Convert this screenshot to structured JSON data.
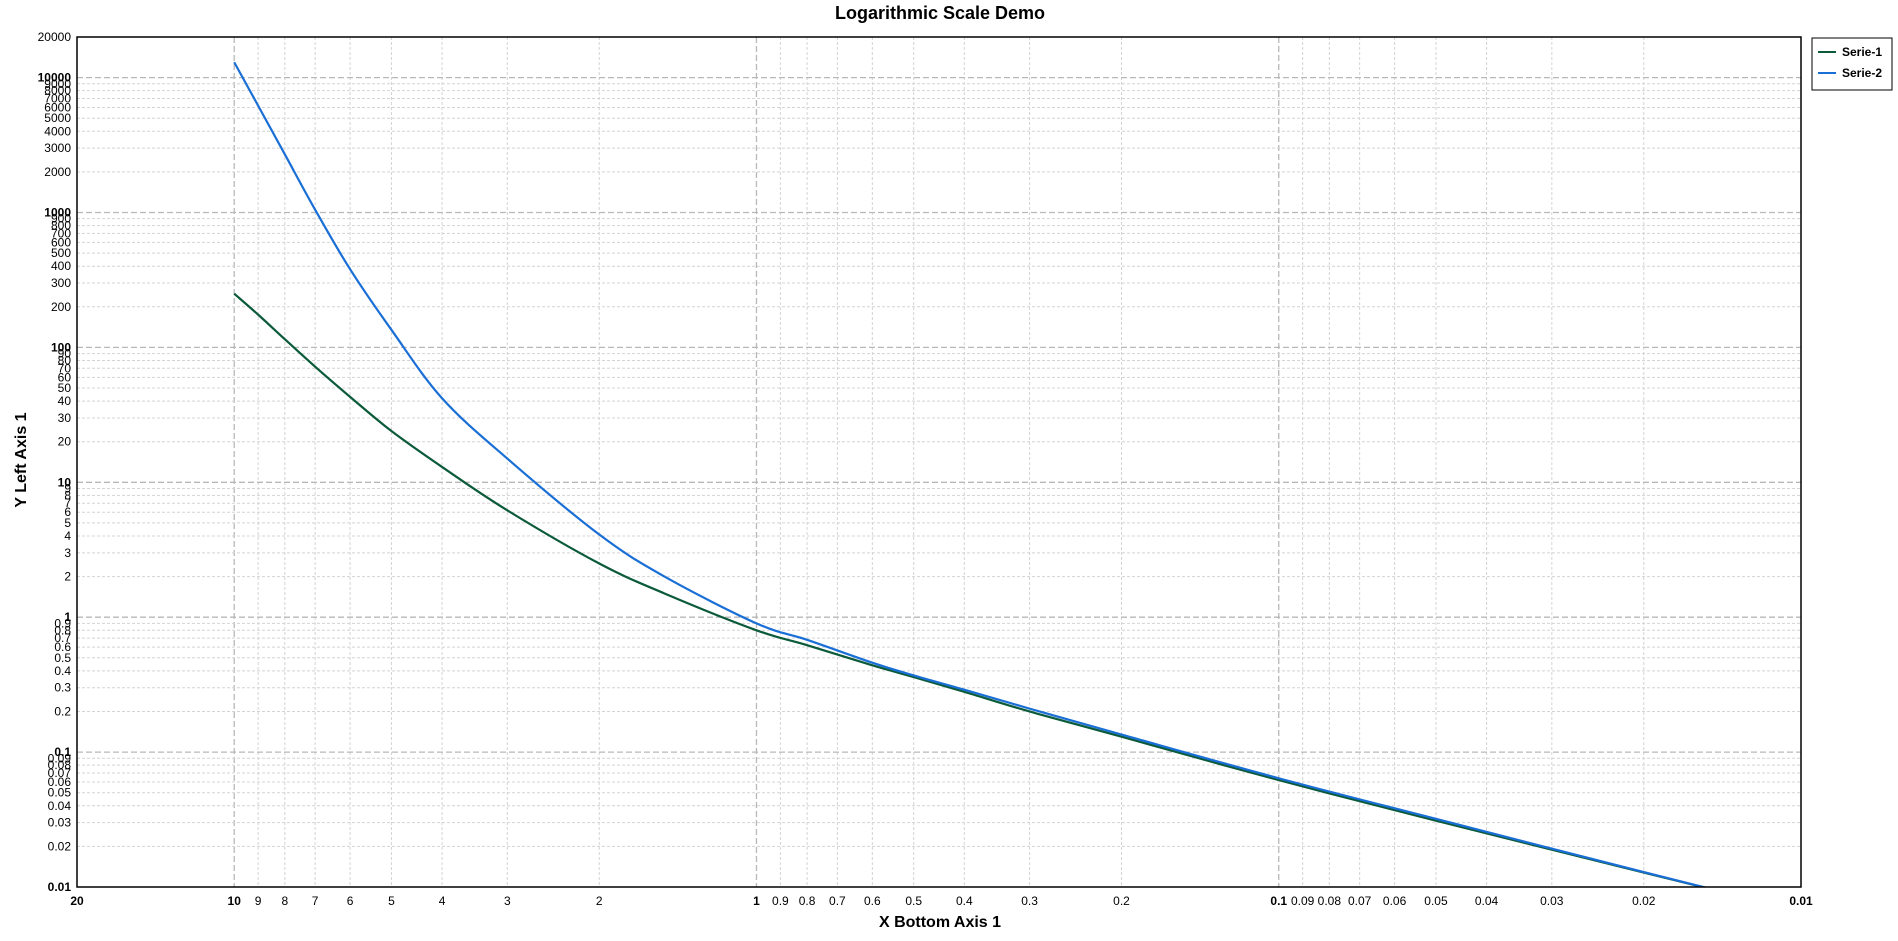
{
  "chart_data": {
    "type": "line",
    "title": "Logarithmic Scale Demo",
    "xlabel": "X Bottom Axis 1",
    "ylabel": "Y Left Axis 1",
    "x_scale": "log",
    "y_scale": "log",
    "x_reversed": true,
    "xlim": [
      20,
      0.01
    ],
    "ylim": [
      0.01,
      20000
    ],
    "grid": true,
    "legend_position": "top-right",
    "x_ticks": [
      {
        "value": 20,
        "label": "20",
        "major": true
      },
      {
        "value": 10,
        "label": "10",
        "major": true
      },
      {
        "value": 9,
        "label": "9"
      },
      {
        "value": 8,
        "label": "8"
      },
      {
        "value": 7,
        "label": "7"
      },
      {
        "value": 6,
        "label": "6"
      },
      {
        "value": 5,
        "label": "5"
      },
      {
        "value": 4,
        "label": "4"
      },
      {
        "value": 3,
        "label": "3"
      },
      {
        "value": 2,
        "label": "2"
      },
      {
        "value": 1,
        "label": "1",
        "major": true
      },
      {
        "value": 0.9,
        "label": "0.9"
      },
      {
        "value": 0.8,
        "label": "0.8"
      },
      {
        "value": 0.7,
        "label": "0.7"
      },
      {
        "value": 0.6,
        "label": "0.6"
      },
      {
        "value": 0.5,
        "label": "0.5"
      },
      {
        "value": 0.4,
        "label": "0.4"
      },
      {
        "value": 0.3,
        "label": "0.3"
      },
      {
        "value": 0.2,
        "label": "0.2"
      },
      {
        "value": 0.1,
        "label": "0.1",
        "major": true
      },
      {
        "value": 0.09,
        "label": "0.09"
      },
      {
        "value": 0.08,
        "label": "0.08"
      },
      {
        "value": 0.07,
        "label": "0.07"
      },
      {
        "value": 0.06,
        "label": "0.06"
      },
      {
        "value": 0.05,
        "label": "0.05"
      },
      {
        "value": 0.04,
        "label": "0.04"
      },
      {
        "value": 0.03,
        "label": "0.03"
      },
      {
        "value": 0.02,
        "label": "0.02"
      },
      {
        "value": 0.01,
        "label": "0.01",
        "major": true
      }
    ],
    "y_ticks": [
      {
        "value": 20000,
        "label": "20000"
      },
      {
        "value": 10000,
        "label": "10000",
        "major": true
      },
      {
        "value": 9000,
        "label": "9000"
      },
      {
        "value": 8000,
        "label": "8000"
      },
      {
        "value": 7000,
        "label": "7000"
      },
      {
        "value": 6000,
        "label": "6000"
      },
      {
        "value": 5000,
        "label": "5000"
      },
      {
        "value": 4000,
        "label": "4000"
      },
      {
        "value": 3000,
        "label": "3000"
      },
      {
        "value": 2000,
        "label": "2000"
      },
      {
        "value": 1000,
        "label": "1000",
        "major": true
      },
      {
        "value": 900,
        "label": "900"
      },
      {
        "value": 800,
        "label": "800"
      },
      {
        "value": 700,
        "label": "700"
      },
      {
        "value": 600,
        "label": "600"
      },
      {
        "value": 500,
        "label": "500"
      },
      {
        "value": 400,
        "label": "400"
      },
      {
        "value": 300,
        "label": "300"
      },
      {
        "value": 200,
        "label": "200"
      },
      {
        "value": 100,
        "label": "100",
        "major": true
      },
      {
        "value": 90,
        "label": "90"
      },
      {
        "value": 80,
        "label": "80"
      },
      {
        "value": 70,
        "label": "70"
      },
      {
        "value": 60,
        "label": "60"
      },
      {
        "value": 50,
        "label": "50"
      },
      {
        "value": 40,
        "label": "40"
      },
      {
        "value": 30,
        "label": "30"
      },
      {
        "value": 20,
        "label": "20"
      },
      {
        "value": 10,
        "label": "10",
        "major": true
      },
      {
        "value": 9,
        "label": "9"
      },
      {
        "value": 8,
        "label": "8"
      },
      {
        "value": 7,
        "label": "7"
      },
      {
        "value": 6,
        "label": "6"
      },
      {
        "value": 5,
        "label": "5"
      },
      {
        "value": 4,
        "label": "4"
      },
      {
        "value": 3,
        "label": "3"
      },
      {
        "value": 2,
        "label": "2"
      },
      {
        "value": 1,
        "label": "1",
        "major": true
      },
      {
        "value": 0.9,
        "label": "0.9"
      },
      {
        "value": 0.8,
        "label": "0.8"
      },
      {
        "value": 0.7,
        "label": "0.7"
      },
      {
        "value": 0.6,
        "label": "0.6"
      },
      {
        "value": 0.5,
        "label": "0.5"
      },
      {
        "value": 0.4,
        "label": "0.4"
      },
      {
        "value": 0.3,
        "label": "0.3"
      },
      {
        "value": 0.2,
        "label": "0.2"
      },
      {
        "value": 0.1,
        "label": "0.1",
        "major": true
      },
      {
        "value": 0.09,
        "label": "0.09"
      },
      {
        "value": 0.08,
        "label": "0.08"
      },
      {
        "value": 0.07,
        "label": "0.07"
      },
      {
        "value": 0.06,
        "label": "0.06"
      },
      {
        "value": 0.05,
        "label": "0.05"
      },
      {
        "value": 0.04,
        "label": "0.04"
      },
      {
        "value": 0.03,
        "label": "0.03"
      },
      {
        "value": 0.02,
        "label": "0.02"
      },
      {
        "value": 0.01,
        "label": "0.01",
        "major": true
      }
    ],
    "series": [
      {
        "name": "Serie-1",
        "color": "#0b5a3a",
        "x": [
          10,
          9,
          8,
          7,
          6,
          5,
          4,
          3,
          2,
          1.5,
          1,
          0.8,
          0.6,
          0.5,
          0.4,
          0.3,
          0.2,
          0.1,
          0.05,
          0.02,
          0.01
        ],
        "y": [
          250,
          175,
          115,
          72,
          43,
          24,
          13,
          6.2,
          2.5,
          1.5,
          0.8,
          0.62,
          0.44,
          0.36,
          0.28,
          0.2,
          0.13,
          0.062,
          0.031,
          0.0128,
          0.0066
        ]
      },
      {
        "name": "Serie-2",
        "color": "#1a6fd6",
        "x": [
          10,
          9,
          8,
          7,
          6,
          5,
          4,
          3,
          2,
          1.5,
          1,
          0.8,
          0.6,
          0.5,
          0.4,
          0.3,
          0.2,
          0.1,
          0.05,
          0.02,
          0.01
        ],
        "y": [
          13000,
          6200,
          2700,
          1050,
          380,
          135,
          42,
          15,
          4.1,
          2.0,
          0.9,
          0.68,
          0.46,
          0.37,
          0.29,
          0.21,
          0.135,
          0.064,
          0.032,
          0.0129,
          0.0066
        ]
      }
    ]
  }
}
